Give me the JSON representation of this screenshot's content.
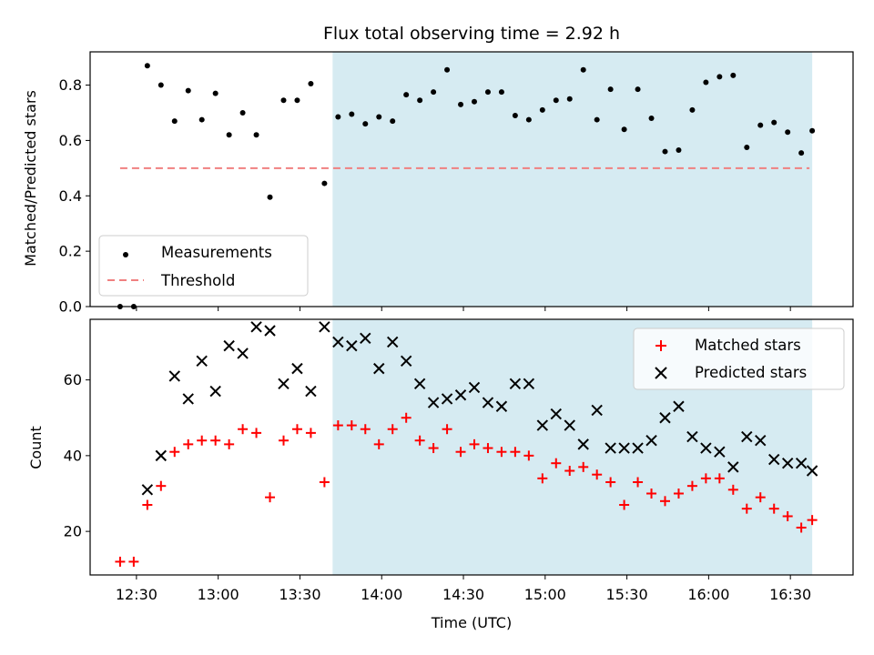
{
  "chart_data": [
    {
      "type": "scatter",
      "title": "Flux total observing time = 2.92 h",
      "xlabel": "",
      "ylabel": "Matched/Predicted stars",
      "xlim": [
        "12:13",
        "16:53"
      ],
      "ylim": [
        0,
        0.92
      ],
      "yticks": [
        0.0,
        0.2,
        0.4,
        0.6,
        0.8
      ],
      "ytick_labels": [
        "0.0",
        "0.2",
        "0.4",
        "0.6",
        "0.8"
      ],
      "shaded_region": {
        "start": "13:42",
        "end": "16:38",
        "color": "#add8e6"
      },
      "legend": {
        "placement": "lower left",
        "entries": [
          "Measurements",
          "Threshold"
        ]
      },
      "threshold": {
        "label": "Threshold",
        "value": 0.5,
        "x": [
          "12:24",
          "16:37"
        ],
        "color": "#f08080"
      },
      "series": [
        {
          "name": "Measurements",
          "color": "#000000",
          "x": [
            "12:24",
            "12:29",
            "12:34",
            "12:39",
            "12:44",
            "12:49",
            "12:54",
            "12:59",
            "13:04",
            "13:09",
            "13:14",
            "13:19",
            "13:24",
            "13:29",
            "13:34",
            "13:39",
            "13:44",
            "13:49",
            "13:54",
            "13:59",
            "14:04",
            "14:09",
            "14:14",
            "14:19",
            "14:24",
            "14:29",
            "14:34",
            "14:39",
            "14:44",
            "14:49",
            "14:54",
            "14:59",
            "15:04",
            "15:09",
            "15:14",
            "15:19",
            "15:24",
            "15:29",
            "15:34",
            "15:39",
            "15:44",
            "15:49",
            "15:54",
            "15:59",
            "16:04",
            "16:09",
            "16:14",
            "16:19",
            "16:24",
            "16:29",
            "16:34",
            "16:38"
          ],
          "y": [
            0.0,
            0.0,
            0.87,
            0.8,
            0.67,
            0.78,
            0.675,
            0.77,
            0.62,
            0.7,
            0.62,
            0.395,
            0.745,
            0.745,
            0.805,
            0.445,
            0.685,
            0.695,
            0.66,
            0.685,
            0.67,
            0.765,
            0.745,
            0.775,
            0.855,
            0.73,
            0.74,
            0.775,
            0.775,
            0.69,
            0.675,
            0.71,
            0.745,
            0.75,
            0.855,
            0.675,
            0.785,
            0.64,
            0.785,
            0.68,
            0.56,
            0.565,
            0.71,
            0.81,
            0.83,
            0.835,
            0.575,
            0.655,
            0.665,
            0.63,
            0.555,
            0.635
          ]
        }
      ]
    },
    {
      "type": "scatter",
      "title": "",
      "xlabel": "Time (UTC)",
      "ylabel": "Count",
      "xlim": [
        "12:13",
        "16:53"
      ],
      "ylim": [
        8.5,
        76
      ],
      "yticks": [
        20,
        40,
        60
      ],
      "ytick_labels": [
        "20",
        "40",
        "60"
      ],
      "xtick_labels": [
        "12:30",
        "13:00",
        "13:30",
        "14:00",
        "14:30",
        "15:00",
        "15:30",
        "16:00",
        "16:30"
      ],
      "shaded_region": {
        "start": "13:42",
        "end": "16:38",
        "color": "#add8e6"
      },
      "legend": {
        "placement": "upper right",
        "entries": [
          "Matched stars",
          "Predicted stars"
        ]
      },
      "series": [
        {
          "name": "Matched stars",
          "marker": "+",
          "color": "#ff0000",
          "x": [
            "12:24",
            "12:29",
            "12:34",
            "12:39",
            "12:44",
            "12:49",
            "12:54",
            "12:59",
            "13:04",
            "13:09",
            "13:14",
            "13:19",
            "13:24",
            "13:29",
            "13:34",
            "13:39",
            "13:44",
            "13:49",
            "13:54",
            "13:59",
            "14:04",
            "14:09",
            "14:14",
            "14:19",
            "14:24",
            "14:29",
            "14:34",
            "14:39",
            "14:44",
            "14:49",
            "14:54",
            "14:59",
            "15:04",
            "15:09",
            "15:14",
            "15:19",
            "15:24",
            "15:29",
            "15:34",
            "15:39",
            "15:44",
            "15:49",
            "15:54",
            "15:59",
            "16:04",
            "16:09",
            "16:14",
            "16:19",
            "16:24",
            "16:29",
            "16:34",
            "16:38"
          ],
          "y": [
            12,
            12,
            27,
            32,
            41,
            43,
            44,
            44,
            43,
            47,
            46,
            29,
            44,
            47,
            46,
            33,
            48,
            48,
            47,
            43,
            47,
            50,
            44,
            42,
            47,
            41,
            43,
            42,
            41,
            41,
            40,
            34,
            38,
            36,
            37,
            35,
            33,
            27,
            33,
            30,
            28,
            30,
            32,
            34,
            34,
            31,
            26,
            29,
            26,
            24,
            21,
            23
          ]
        },
        {
          "name": "Predicted stars",
          "marker": "x",
          "color": "#000000",
          "x": [
            "12:34",
            "12:39",
            "12:44",
            "12:49",
            "12:54",
            "12:59",
            "13:04",
            "13:09",
            "13:14",
            "13:19",
            "13:24",
            "13:29",
            "13:34",
            "13:39",
            "13:44",
            "13:49",
            "13:54",
            "13:59",
            "14:04",
            "14:09",
            "14:14",
            "14:19",
            "14:24",
            "14:29",
            "14:34",
            "14:39",
            "14:44",
            "14:49",
            "14:54",
            "14:59",
            "15:04",
            "15:09",
            "15:14",
            "15:19",
            "15:24",
            "15:29",
            "15:34",
            "15:39",
            "15:44",
            "15:49",
            "15:54",
            "15:59",
            "16:04",
            "16:09",
            "16:14",
            "16:19",
            "16:24",
            "16:29",
            "16:34",
            "16:38"
          ],
          "y": [
            31,
            40,
            61,
            55,
            65,
            57,
            69,
            67,
            74,
            73,
            59,
            63,
            57,
            74,
            70,
            69,
            71,
            63,
            70,
            65,
            59,
            54,
            55,
            56,
            58,
            54,
            53,
            59,
            59,
            48,
            51,
            48,
            43,
            52,
            42,
            42,
            42,
            44,
            50,
            53,
            45,
            42,
            41,
            37,
            45,
            44,
            39,
            38,
            38,
            36
          ]
        }
      ]
    }
  ]
}
